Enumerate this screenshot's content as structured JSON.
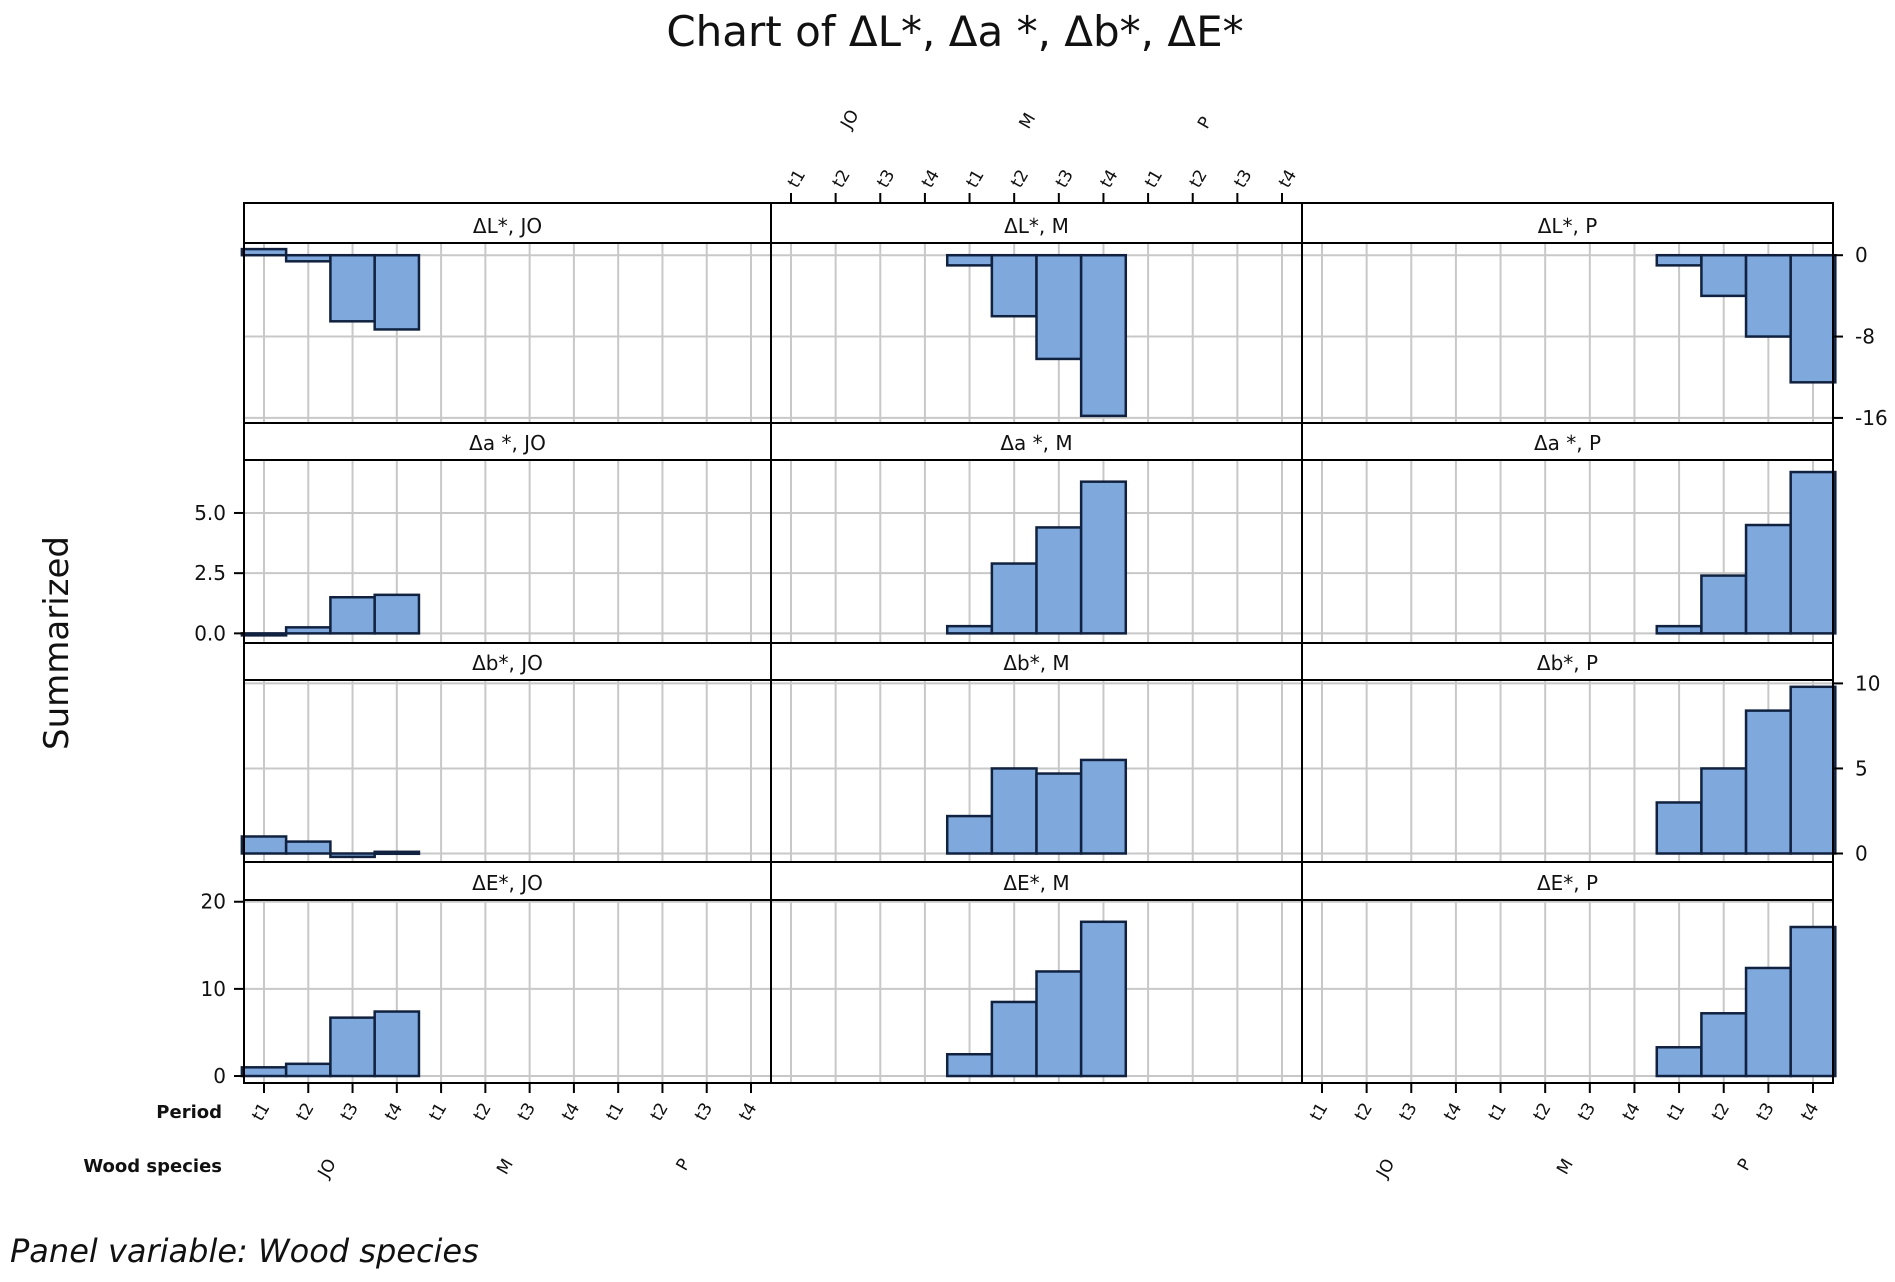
{
  "chart_data": {
    "type": "bar",
    "title": "Chart of ΔL*, Δa *, Δb*, ΔE*",
    "ylabel": "Summarized",
    "footnote": "Panel variable: Wood species",
    "row_labels": {
      "period": "Period",
      "species": "Wood species"
    },
    "periods": [
      "t1",
      "t2",
      "t3",
      "t4"
    ],
    "species": [
      "JO",
      "M",
      "P"
    ],
    "colors": {
      "bar": "#7fa8dc",
      "bar_edge": "#10223f",
      "grid": "#c8c8c8",
      "frame": "#000000",
      "strip": "#ffffff"
    },
    "panels": [
      {
        "row": 0,
        "col": 0,
        "strip": "ΔL*, JO",
        "values": [
          0.6,
          -0.6,
          -6.5,
          -7.3
        ]
      },
      {
        "row": 0,
        "col": 1,
        "strip": "ΔL*, M",
        "values": [
          -1.0,
          -6.0,
          -10.2,
          -15.8
        ]
      },
      {
        "row": 0,
        "col": 2,
        "strip": "ΔL*, P",
        "values": [
          -1.0,
          -4.0,
          -8.0,
          -12.5
        ]
      },
      {
        "row": 1,
        "col": 0,
        "strip": "Δa *, JO",
        "values": [
          0.0,
          0.25,
          1.5,
          1.6
        ]
      },
      {
        "row": 1,
        "col": 1,
        "strip": "Δa *, M",
        "values": [
          0.3,
          2.9,
          4.4,
          6.3
        ]
      },
      {
        "row": 1,
        "col": 2,
        "strip": "Δa *, P",
        "values": [
          0.3,
          2.4,
          4.5,
          6.7
        ]
      },
      {
        "row": 2,
        "col": 0,
        "strip": "Δb*, JO",
        "values": [
          1.0,
          0.7,
          -0.2,
          0.1
        ]
      },
      {
        "row": 2,
        "col": 1,
        "strip": "Δb*, M",
        "values": [
          2.2,
          5.0,
          4.7,
          5.5
        ]
      },
      {
        "row": 2,
        "col": 2,
        "strip": "Δb*, P",
        "values": [
          3.0,
          5.0,
          8.4,
          9.8
        ]
      },
      {
        "row": 3,
        "col": 0,
        "strip": "ΔE*, JO",
        "values": [
          1.0,
          1.4,
          6.7,
          7.4
        ]
      },
      {
        "row": 3,
        "col": 1,
        "strip": "ΔE*, M",
        "values": [
          2.5,
          8.5,
          12.0,
          17.7
        ]
      },
      {
        "row": 3,
        "col": 2,
        "strip": "ΔE*, P",
        "values": [
          3.3,
          7.2,
          12.4,
          17.1
        ]
      }
    ],
    "rows": [
      {
        "measure": "ΔL*",
        "ylim": [
          -16.5,
          1.2
        ],
        "ticks": [
          0,
          -8,
          -16
        ],
        "tick_labels": [
          "0",
          "-8",
          "-16"
        ],
        "axis": "right"
      },
      {
        "measure": "Δa *",
        "ylim": [
          -0.4,
          7.2
        ],
        "ticks": [
          0.0,
          2.5,
          5.0
        ],
        "tick_labels": [
          "0.0",
          "2.5",
          "5.0"
        ],
        "axis": "left"
      },
      {
        "measure": "Δb*",
        "ylim": [
          -0.5,
          10.2
        ],
        "ticks": [
          0,
          5,
          10
        ],
        "tick_labels": [
          "0",
          "5",
          "10"
        ],
        "axis": "right"
      },
      {
        "measure": "ΔE*",
        "ylim": [
          -0.8,
          20.2
        ],
        "ticks": [
          0,
          10,
          20
        ],
        "tick_labels": [
          "0",
          "10",
          "20"
        ],
        "axis": "left"
      }
    ],
    "top_axis_column": 1,
    "bottom_axis_columns": [
      0,
      2
    ]
  }
}
